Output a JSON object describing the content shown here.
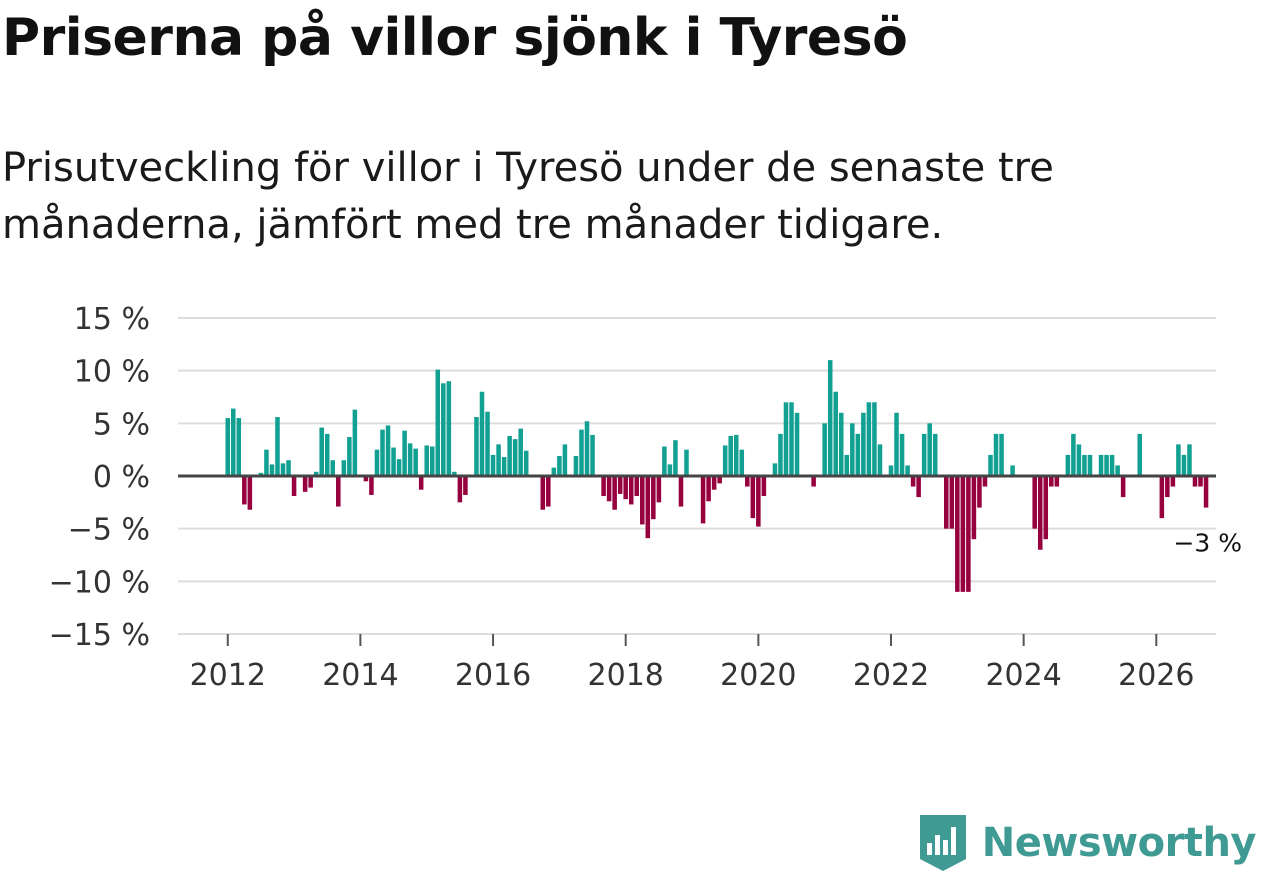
{
  "title": "Priserna på villor sjönk i Tyresö",
  "subtitle": "Prisutveckling för villor i Tyresö under de senaste tre månaderna, jämfört med tre månader tidigare.",
  "brand": {
    "name": "Newsworthy"
  },
  "colors": {
    "positive": "#12a092",
    "negative": "#96003f",
    "grid": "#dddddd",
    "zero_line": "#444444",
    "brand": "#3e9a92"
  },
  "chart_data": {
    "type": "bar",
    "title": "Priserna på villor sjönk i Tyresö",
    "xlabel": "",
    "ylabel": "",
    "ylim": [
      -15,
      15
    ],
    "xlim": [
      2011.25,
      2026.9
    ],
    "y_ticks": [
      15,
      10,
      5,
      0,
      -5,
      -10,
      -15
    ],
    "y_tick_labels": [
      "15 %",
      "10 %",
      "5 %",
      "0 %",
      "−5 %",
      "−10 %",
      "−15 %"
    ],
    "x_ticks": [
      2012,
      2014,
      2016,
      2018,
      2020,
      2022,
      2024,
      2026
    ],
    "x_tick_labels": [
      "2012",
      "2014",
      "2016",
      "2018",
      "2020",
      "2022",
      "2024",
      "2026"
    ],
    "grid": true,
    "start": "2012-01",
    "frequency": "monthly",
    "values": [
      5.5,
      6.4,
      5.5,
      -2.7,
      -3.2,
      0,
      0.3,
      2.5,
      1.1,
      5.6,
      1.2,
      1.5,
      -1.9,
      0,
      -1.5,
      -1.1,
      0.4,
      4.6,
      4.0,
      1.5,
      -2.9,
      1.5,
      3.7,
      6.3,
      0,
      -0.5,
      -1.8,
      2.5,
      4.4,
      4.8,
      2.7,
      1.6,
      4.3,
      3.1,
      2.6,
      -1.3,
      2.9,
      2.8,
      10.1,
      8.8,
      9.0,
      0.4,
      -2.5,
      -1.8,
      0,
      5.6,
      8.0,
      6.1,
      2.0,
      3.0,
      1.8,
      3.8,
      3.5,
      4.5,
      2.4,
      0,
      -0.1,
      -3.2,
      -2.9,
      0.8,
      1.9,
      3.0,
      0,
      1.9,
      4.4,
      5.2,
      3.9,
      0,
      -1.9,
      -2.4,
      -3.2,
      -1.7,
      -2.2,
      -2.7,
      -1.9,
      -4.6,
      -5.9,
      -4.1,
      -2.5,
      2.8,
      1.1,
      3.4,
      -2.9,
      2.5,
      0,
      -0.1,
      -4.5,
      -2.4,
      -1.3,
      -0.7,
      2.9,
      3.8,
      3.9,
      2.5,
      -1.0,
      -4.0,
      -4.8,
      -1.9,
      0,
      1.2,
      4.0,
      7.0,
      7.0,
      6.0,
      0,
      0,
      -1.0,
      0,
      5.0,
      11.0,
      8.0,
      6.0,
      2.0,
      5.0,
      4.0,
      6.0,
      7.0,
      7.0,
      3.0,
      0,
      1.0,
      6.0,
      4.0,
      1.0,
      -1.0,
      -2.0,
      4.0,
      5.0,
      4.0,
      0,
      -5.0,
      -5.0,
      -11.0,
      -11.0,
      -11.0,
      -6.0,
      -3.0,
      -1.0,
      2.0,
      4.0,
      4.0,
      0,
      1.0,
      0,
      0,
      0,
      -5.0,
      -7.0,
      -6.0,
      -1.0,
      -1.0,
      0,
      2.0,
      4.0,
      3.0,
      2.0,
      2.0,
      0,
      2.0,
      2.0,
      2.0,
      1.0,
      -2.0,
      0,
      0,
      4.0,
      0,
      0,
      0,
      -4.0,
      -2.0,
      -1.0,
      3.0,
      2.0,
      3.0,
      -1.0,
      -1.0,
      -3.0
    ],
    "annotations": [
      {
        "text": "−3 %",
        "target": "last"
      }
    ]
  }
}
